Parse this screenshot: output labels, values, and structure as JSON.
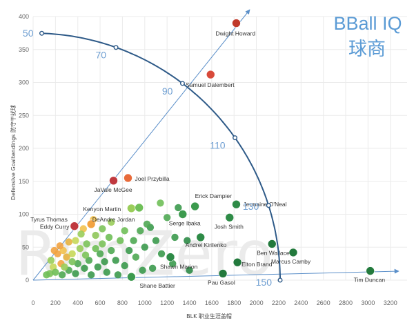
{
  "brand": {
    "title_en": "BBall IQ",
    "title_cn": "球商",
    "watermark": "RimZero"
  },
  "colors": {
    "ray": "#5b8fc9",
    "arc": "#2e5a88",
    "arc_label": "#6f9fd2",
    "brand": "#5b9bd5"
  },
  "chart_data": {
    "type": "scatter",
    "title": "",
    "xlabel": "BLK 职业生涯盖帽",
    "ylabel": "Defensive Goaltendings 防守干扰球",
    "xlim": [
      0,
      3350
    ],
    "ylim": [
      0,
      400
    ],
    "x_ticks": [
      0,
      200,
      400,
      600,
      800,
      1000,
      1200,
      1400,
      1600,
      1800,
      2000,
      2200,
      2400,
      2600,
      2800,
      3000,
      3200
    ],
    "y_ticks": [
      0,
      50,
      100,
      150,
      200,
      250,
      300,
      350,
      400
    ],
    "grid": true,
    "arc_labels": [
      "50",
      "70",
      "90",
      "110",
      "130",
      "150"
    ],
    "labeled_players": [
      {
        "name": "Dwight Howard",
        "blk": 1820,
        "dgt": 390,
        "color": "#c0392b"
      },
      {
        "name": "Samuel Dalembert",
        "blk": 1590,
        "dgt": 312,
        "color": "#d84a3a"
      },
      {
        "name": "Joel Przybilla",
        "blk": 850,
        "dgt": 155,
        "color": "#e86b3a"
      },
      {
        "name": "JaVale McGee",
        "blk": 720,
        "dgt": 151,
        "color": "#c0393f"
      },
      {
        "name": "Erick Dampier",
        "blk": 1450,
        "dgt": 112,
        "color": "#3c9a4e"
      },
      {
        "name": "Jermaine O'Neal",
        "blk": 1820,
        "dgt": 115,
        "color": "#2e8b47"
      },
      {
        "name": "Kenyon Martin",
        "blk": 880,
        "dgt": 109,
        "color": "#9acd5a"
      },
      {
        "name": "DeAndre Jordan",
        "blk": 950,
        "dgt": 110,
        "color": "#6fbf58"
      },
      {
        "name": "Tyrus Thomas",
        "blk": 520,
        "dgt": 85,
        "color": "#f2a341"
      },
      {
        "name": "Eddy Curry",
        "blk": 370,
        "dgt": 82,
        "color": "#c0393f"
      },
      {
        "name": "Serge Ibaka",
        "blk": 1340,
        "dgt": 100,
        "color": "#3c9a4e"
      },
      {
        "name": "Josh Smith",
        "blk": 1760,
        "dgt": 95,
        "color": "#2e8b47"
      },
      {
        "name": "Andrei Kirilenko",
        "blk": 1500,
        "dgt": 65,
        "color": "#2e8b47"
      },
      {
        "name": "Shawn Marion",
        "blk": 1230,
        "dgt": 35,
        "color": "#2e8b47"
      },
      {
        "name": "Ben Wallace",
        "blk": 2140,
        "dgt": 55,
        "color": "#237a3d"
      },
      {
        "name": "Marcus Camby",
        "blk": 2330,
        "dgt": 42,
        "color": "#237a3d"
      },
      {
        "name": "Elton Brand",
        "blk": 1830,
        "dgt": 27,
        "color": "#237a3d"
      },
      {
        "name": "Shane Battier",
        "blk": 880,
        "dgt": 5,
        "color": "#3c9a4e"
      },
      {
        "name": "Pau Gasol",
        "blk": 1700,
        "dgt": 10,
        "color": "#237a3d"
      },
      {
        "name": "Tim Duncan",
        "blk": 3020,
        "dgt": 14,
        "color": "#237a3d"
      }
    ],
    "other_players": [
      {
        "blk": 1050,
        "dgt": 80,
        "color": "#3c9a4e"
      },
      {
        "blk": 1140,
        "dgt": 117,
        "color": "#6fbf58"
      },
      {
        "blk": 1020,
        "dgt": 85,
        "color": "#4fa853"
      },
      {
        "blk": 1300,
        "dgt": 110,
        "color": "#3c9a4e"
      },
      {
        "blk": 1270,
        "dgt": 65,
        "color": "#3c9a4e"
      },
      {
        "blk": 1100,
        "dgt": 60,
        "color": "#3c9a4e"
      },
      {
        "blk": 960,
        "dgt": 75,
        "color": "#4fa853"
      },
      {
        "blk": 1200,
        "dgt": 95,
        "color": "#4fa853"
      },
      {
        "blk": 1380,
        "dgt": 60,
        "color": "#2e8b47"
      },
      {
        "blk": 1000,
        "dgt": 50,
        "color": "#3c9a4e"
      },
      {
        "blk": 1150,
        "dgt": 40,
        "color": "#3c9a4e"
      },
      {
        "blk": 1400,
        "dgt": 15,
        "color": "#2e8b47"
      },
      {
        "blk": 1070,
        "dgt": 18,
        "color": "#3c9a4e"
      },
      {
        "blk": 1250,
        "dgt": 25,
        "color": "#3c9a4e"
      },
      {
        "blk": 920,
        "dgt": 35,
        "color": "#4fa853"
      },
      {
        "blk": 780,
        "dgt": 60,
        "color": "#6fbf58"
      },
      {
        "blk": 680,
        "dgt": 65,
        "color": "#6fbf58"
      },
      {
        "blk": 620,
        "dgt": 78,
        "color": "#7cc35a"
      },
      {
        "blk": 700,
        "dgt": 88,
        "color": "#9acd5a"
      },
      {
        "blk": 560,
        "dgt": 68,
        "color": "#8fc75a"
      },
      {
        "blk": 480,
        "dgt": 55,
        "color": "#7cc35a"
      },
      {
        "blk": 420,
        "dgt": 48,
        "color": "#9acd5a"
      },
      {
        "blk": 350,
        "dgt": 40,
        "color": "#c6d85a"
      },
      {
        "blk": 300,
        "dgt": 35,
        "color": "#e6b13f"
      },
      {
        "blk": 250,
        "dgt": 25,
        "color": "#f2a341"
      },
      {
        "blk": 220,
        "dgt": 40,
        "color": "#f2a341"
      },
      {
        "blk": 270,
        "dgt": 45,
        "color": "#f2c14e"
      },
      {
        "blk": 320,
        "dgt": 58,
        "color": "#e6b13f"
      },
      {
        "blk": 450,
        "dgt": 78,
        "color": "#f2c14e"
      },
      {
        "blk": 540,
        "dgt": 92,
        "color": "#f2c14e"
      },
      {
        "blk": 430,
        "dgt": 70,
        "color": "#9acd5a"
      },
      {
        "blk": 180,
        "dgt": 20,
        "color": "#c6d85a"
      },
      {
        "blk": 150,
        "dgt": 10,
        "color": "#7cc35a"
      },
      {
        "blk": 120,
        "dgt": 8,
        "color": "#6fbf58"
      },
      {
        "blk": 200,
        "dgt": 12,
        "color": "#6fbf58"
      },
      {
        "blk": 260,
        "dgt": 8,
        "color": "#4fa853"
      },
      {
        "blk": 320,
        "dgt": 15,
        "color": "#4fa853"
      },
      {
        "blk": 380,
        "dgt": 10,
        "color": "#3c9a4e"
      },
      {
        "blk": 400,
        "dgt": 25,
        "color": "#4fa853"
      },
      {
        "blk": 460,
        "dgt": 18,
        "color": "#3c9a4e"
      },
      {
        "blk": 500,
        "dgt": 30,
        "color": "#4fa853"
      },
      {
        "blk": 520,
        "dgt": 8,
        "color": "#3c9a4e"
      },
      {
        "blk": 580,
        "dgt": 20,
        "color": "#3c9a4e"
      },
      {
        "blk": 600,
        "dgt": 40,
        "color": "#4fa853"
      },
      {
        "blk": 640,
        "dgt": 28,
        "color": "#3c9a4e"
      },
      {
        "blk": 660,
        "dgt": 12,
        "color": "#3c9a4e"
      },
      {
        "blk": 700,
        "dgt": 45,
        "color": "#4fa853"
      },
      {
        "blk": 740,
        "dgt": 30,
        "color": "#3c9a4e"
      },
      {
        "blk": 760,
        "dgt": 8,
        "color": "#3c9a4e"
      },
      {
        "blk": 820,
        "dgt": 22,
        "color": "#3c9a4e"
      },
      {
        "blk": 860,
        "dgt": 45,
        "color": "#3c9a4e"
      },
      {
        "blk": 900,
        "dgt": 60,
        "color": "#4fa853"
      },
      {
        "blk": 980,
        "dgt": 15,
        "color": "#3c9a4e"
      },
      {
        "blk": 160,
        "dgt": 30,
        "color": "#9acd5a"
      },
      {
        "blk": 280,
        "dgt": 20,
        "color": "#9acd5a"
      },
      {
        "blk": 350,
        "dgt": 28,
        "color": "#7cc35a"
      },
      {
        "blk": 560,
        "dgt": 48,
        "color": "#6fbf58"
      },
      {
        "blk": 820,
        "dgt": 75,
        "color": "#6fbf58"
      },
      {
        "blk": 620,
        "dgt": 55,
        "color": "#7cc35a"
      },
      {
        "blk": 470,
        "dgt": 38,
        "color": "#7cc35a"
      },
      {
        "blk": 380,
        "dgt": 60,
        "color": "#c6d85a"
      },
      {
        "blk": 240,
        "dgt": 52,
        "color": "#f2a341"
      },
      {
        "blk": 190,
        "dgt": 45,
        "color": "#f2a341"
      }
    ]
  }
}
